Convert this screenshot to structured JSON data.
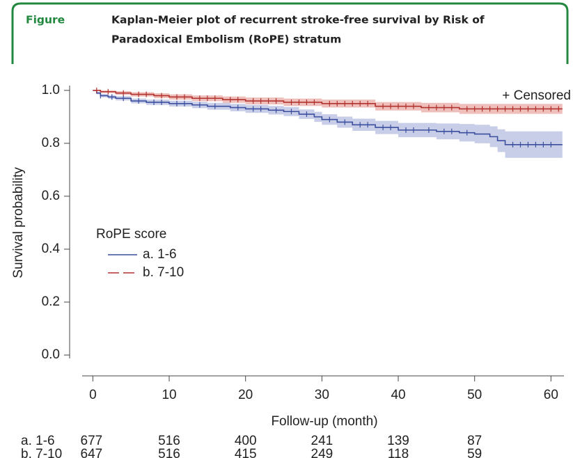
{
  "header": {
    "label": "Figure",
    "title": [
      "Kaplan-Meier plot of recurrent stroke-free survival by Risk of",
      "Paradoxical Embolism (RoPE) stratum"
    ]
  },
  "chart_data": {
    "type": "km",
    "x_label": "Follow-up (month)",
    "y_label": "Survival probability",
    "xlim": [
      -1.4,
      61.7
    ],
    "xticks": [
      0,
      10,
      20,
      30,
      40,
      50,
      60
    ],
    "ylim": [
      -0.013,
      1.018
    ],
    "yticks": [
      {
        "value": 0,
        "label": "0.0"
      },
      0.2,
      0.4,
      0.6,
      0.8,
      {
        "value": 1,
        "label": "1.0"
      }
    ],
    "legend_title": "RoPE score",
    "legend_position": "center-left",
    "censor_label": "+ Censored",
    "series": [
      {
        "name": "a. 1-6",
        "color": "#3b4f9e",
        "band_color": "#b6bce0",
        "dash": false,
        "x": [
          0,
          0.5,
          1,
          2,
          3,
          5,
          7,
          10,
          13,
          15,
          18,
          20,
          23,
          25,
          27,
          29,
          30,
          32,
          34,
          37,
          40,
          45,
          48,
          50,
          52,
          53,
          54,
          61.5
        ],
        "values": [
          1.0,
          0.99,
          0.98,
          0.975,
          0.97,
          0.96,
          0.955,
          0.95,
          0.945,
          0.94,
          0.935,
          0.93,
          0.925,
          0.92,
          0.91,
          0.9,
          0.89,
          0.88,
          0.87,
          0.86,
          0.85,
          0.845,
          0.84,
          0.835,
          0.825,
          0.81,
          0.795,
          0.795
        ],
        "lower": [
          1.0,
          0.985,
          0.974,
          0.968,
          0.962,
          0.951,
          0.945,
          0.939,
          0.933,
          0.927,
          0.921,
          0.915,
          0.909,
          0.903,
          0.892,
          0.881,
          0.87,
          0.859,
          0.847,
          0.835,
          0.823,
          0.815,
          0.807,
          0.8,
          0.786,
          0.767,
          0.745,
          0.745
        ],
        "upper": [
          1.0,
          0.995,
          0.986,
          0.982,
          0.978,
          0.969,
          0.965,
          0.961,
          0.957,
          0.953,
          0.949,
          0.945,
          0.941,
          0.937,
          0.928,
          0.919,
          0.91,
          0.901,
          0.893,
          0.885,
          0.877,
          0.875,
          0.873,
          0.87,
          0.864,
          0.853,
          0.845,
          0.845
        ],
        "censor_times": [
          1,
          2.5,
          4,
          6,
          8,
          9,
          11,
          12,
          14,
          16,
          19,
          21,
          22,
          24,
          26,
          28,
          31,
          33,
          35,
          36,
          38,
          39,
          41,
          42,
          44,
          46,
          47,
          49,
          55,
          56,
          57,
          58,
          59,
          60
        ]
      },
      {
        "name": "b. 7-10",
        "color": "#b2322e",
        "band_color": "#eaaaa5",
        "dash": true,
        "x": [
          0,
          1,
          3,
          5,
          8,
          10,
          13,
          17,
          20,
          25,
          30,
          37,
          43,
          48,
          61.5
        ],
        "values": [
          1.0,
          0.995,
          0.99,
          0.985,
          0.98,
          0.975,
          0.97,
          0.965,
          0.96,
          0.955,
          0.95,
          0.94,
          0.935,
          0.93,
          0.93
        ],
        "lower": [
          1.0,
          0.99,
          0.983,
          0.977,
          0.971,
          0.965,
          0.959,
          0.953,
          0.947,
          0.941,
          0.935,
          0.924,
          0.917,
          0.911,
          0.911
        ],
        "upper": [
          1.0,
          1.0,
          0.997,
          0.993,
          0.989,
          0.985,
          0.981,
          0.977,
          0.973,
          0.969,
          0.965,
          0.956,
          0.953,
          0.949,
          0.949
        ],
        "censor_times": [
          0.5,
          2,
          4,
          6,
          7,
          9,
          11,
          12,
          14,
          15,
          16,
          18,
          19,
          21,
          22,
          23,
          24,
          26,
          27,
          28,
          29,
          31,
          32,
          33,
          34,
          35,
          36,
          38,
          39,
          40,
          41,
          42,
          44,
          45,
          46,
          47,
          49,
          50,
          51,
          52,
          53,
          54,
          55,
          56,
          57,
          58,
          59,
          60,
          61
        ]
      }
    ],
    "risk_table": [
      {
        "label": "a. 1-6",
        "counts": [
          677,
          516,
          400,
          241,
          139,
          87
        ]
      },
      {
        "label": "b. 7-10",
        "counts": [
          647,
          516,
          415,
          249,
          118,
          59
        ]
      }
    ]
  }
}
